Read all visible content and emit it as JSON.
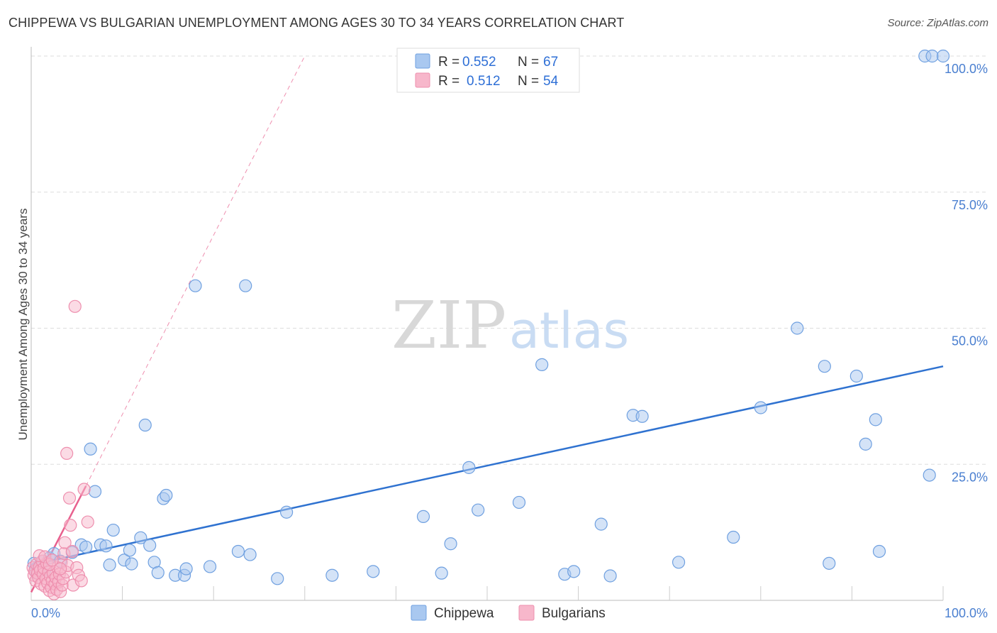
{
  "title": "CHIPPEWA VS BULGARIAN UNEMPLOYMENT AMONG AGES 30 TO 34 YEARS CORRELATION CHART",
  "source": "Source: ZipAtlas.com",
  "watermark": {
    "zip": "ZIP",
    "atlas": "atlas"
  },
  "colors": {
    "chippewa_fill": "#a9c8f0",
    "chippewa_stroke": "#6fa0e0",
    "chippewa_line": "#2f72d0",
    "bulgarians_fill": "#f7b7cb",
    "bulgarians_stroke": "#ee8fae",
    "bulgarians_line": "#e8608e",
    "grid": "#dddddd",
    "axis_text": "#4a7fd0"
  },
  "legend": {
    "rows": [
      {
        "r_label": "R =",
        "r_value": "0.552",
        "n_label": "N =",
        "n_value": "67"
      },
      {
        "r_label": "R =",
        "r_value": "0.512",
        "n_label": "N =",
        "n_value": "54"
      }
    ]
  },
  "chart_data": {
    "type": "scatter",
    "title": "CHIPPEWA VS BULGARIAN UNEMPLOYMENT AMONG AGES 30 TO 34 YEARS CORRELATION CHART",
    "xlabel": "",
    "ylabel": "Unemployment Among Ages 30 to 34 years",
    "xlim": [
      0,
      100
    ],
    "ylim": [
      0,
      100
    ],
    "x_tick_labels": [
      "0.0%",
      "100.0%"
    ],
    "y_tick_labels": [
      "25.0%",
      "50.0%",
      "75.0%",
      "100.0%"
    ],
    "y_tick_values": [
      25,
      50,
      75,
      100
    ],
    "legend_position": "top-center",
    "series": [
      {
        "name": "Chippewa",
        "r": 0.552,
        "n": 67,
        "trend": {
          "x": [
            0,
            100
          ],
          "y": [
            6.5,
            43
          ]
        },
        "points": [
          [
            0.3,
            6.8
          ],
          [
            0.5,
            5.8
          ],
          [
            0.6,
            5.0
          ],
          [
            0.8,
            6.2
          ],
          [
            1.0,
            6.0
          ],
          [
            1.3,
            7.2
          ],
          [
            1.5,
            5.6
          ],
          [
            2.0,
            7.8
          ],
          [
            2.5,
            8.6
          ],
          [
            3.2,
            7.2
          ],
          [
            4.5,
            8.8
          ],
          [
            5.5,
            10.2
          ],
          [
            6.0,
            9.8
          ],
          [
            6.5,
            27.8
          ],
          [
            7.0,
            20.0
          ],
          [
            7.6,
            10.2
          ],
          [
            8.2,
            10.0
          ],
          [
            8.6,
            6.5
          ],
          [
            9.0,
            12.9
          ],
          [
            10.2,
            7.4
          ],
          [
            10.8,
            9.2
          ],
          [
            11.0,
            6.7
          ],
          [
            12.0,
            11.5
          ],
          [
            12.5,
            32.2
          ],
          [
            13.0,
            10.1
          ],
          [
            13.5,
            7.0
          ],
          [
            13.9,
            5.1
          ],
          [
            14.5,
            18.7
          ],
          [
            14.8,
            19.3
          ],
          [
            15.8,
            4.6
          ],
          [
            16.8,
            4.6
          ],
          [
            17.0,
            5.8
          ],
          [
            18.0,
            57.8
          ],
          [
            19.6,
            6.2
          ],
          [
            22.7,
            9.0
          ],
          [
            23.5,
            57.8
          ],
          [
            24.0,
            8.4
          ],
          [
            27.0,
            4.0
          ],
          [
            28.0,
            16.2
          ],
          [
            33.0,
            4.6
          ],
          [
            37.5,
            5.3
          ],
          [
            43.0,
            15.4
          ],
          [
            45.0,
            5.0
          ],
          [
            46.0,
            10.4
          ],
          [
            48.0,
            24.4
          ],
          [
            49.0,
            16.6
          ],
          [
            53.5,
            18.0
          ],
          [
            56.0,
            43.3
          ],
          [
            58.5,
            4.8
          ],
          [
            59.5,
            5.3
          ],
          [
            62.5,
            14.0
          ],
          [
            63.5,
            4.5
          ],
          [
            66.0,
            34.0
          ],
          [
            67.0,
            33.8
          ],
          [
            71.0,
            7.0
          ],
          [
            77.0,
            11.6
          ],
          [
            80.0,
            35.4
          ],
          [
            84.0,
            50.0
          ],
          [
            87.0,
            43.0
          ],
          [
            87.5,
            6.8
          ],
          [
            90.5,
            41.2
          ],
          [
            91.5,
            28.7
          ],
          [
            92.6,
            33.2
          ],
          [
            93.0,
            9.0
          ],
          [
            98.5,
            23.0
          ],
          [
            98.0,
            100
          ],
          [
            98.8,
            100
          ],
          [
            100,
            100
          ]
        ]
      },
      {
        "name": "Bulgarians",
        "r": 0.512,
        "n": 54,
        "trend": {
          "x": [
            0,
            6.0
          ],
          "y": [
            1.5,
            21.0
          ]
        },
        "trend_extension": {
          "x": [
            6.0,
            30.0
          ],
          "y": [
            21.0,
            100
          ]
        },
        "points": [
          [
            0.2,
            6.0
          ],
          [
            0.3,
            4.6
          ],
          [
            0.4,
            5.4
          ],
          [
            0.5,
            3.6
          ],
          [
            0.6,
            6.6
          ],
          [
            0.7,
            5.0
          ],
          [
            0.8,
            4.2
          ],
          [
            0.9,
            6.1
          ],
          [
            1.0,
            5.5
          ],
          [
            1.1,
            3.0
          ],
          [
            1.2,
            7.2
          ],
          [
            1.3,
            4.8
          ],
          [
            1.4,
            5.9
          ],
          [
            1.5,
            2.6
          ],
          [
            1.6,
            4.0
          ],
          [
            1.7,
            6.8
          ],
          [
            1.8,
            3.2
          ],
          [
            1.9,
            5.2
          ],
          [
            2.0,
            1.8
          ],
          [
            2.1,
            4.4
          ],
          [
            2.2,
            2.4
          ],
          [
            2.3,
            3.6
          ],
          [
            2.4,
            5.0
          ],
          [
            2.5,
            1.2
          ],
          [
            2.6,
            3.0
          ],
          [
            2.7,
            4.2
          ],
          [
            2.8,
            2.0
          ],
          [
            2.9,
            6.0
          ],
          [
            3.0,
            3.4
          ],
          [
            3.1,
            4.8
          ],
          [
            3.2,
            1.6
          ],
          [
            3.3,
            7.0
          ],
          [
            3.4,
            2.8
          ],
          [
            3.5,
            4.0
          ],
          [
            3.6,
            8.6
          ],
          [
            3.7,
            10.6
          ],
          [
            3.8,
            5.2
          ],
          [
            3.9,
            27.0
          ],
          [
            4.0,
            6.4
          ],
          [
            4.2,
            18.8
          ],
          [
            4.3,
            13.8
          ],
          [
            4.5,
            9.0
          ],
          [
            4.6,
            2.8
          ],
          [
            4.8,
            54.0
          ],
          [
            5.0,
            6.0
          ],
          [
            5.2,
            4.6
          ],
          [
            5.5,
            3.6
          ],
          [
            5.8,
            20.4
          ],
          [
            6.2,
            14.4
          ],
          [
            0.9,
            8.2
          ],
          [
            1.5,
            8.0
          ],
          [
            2.0,
            6.6
          ],
          [
            2.3,
            7.4
          ],
          [
            3.2,
            5.8
          ]
        ]
      }
    ]
  }
}
